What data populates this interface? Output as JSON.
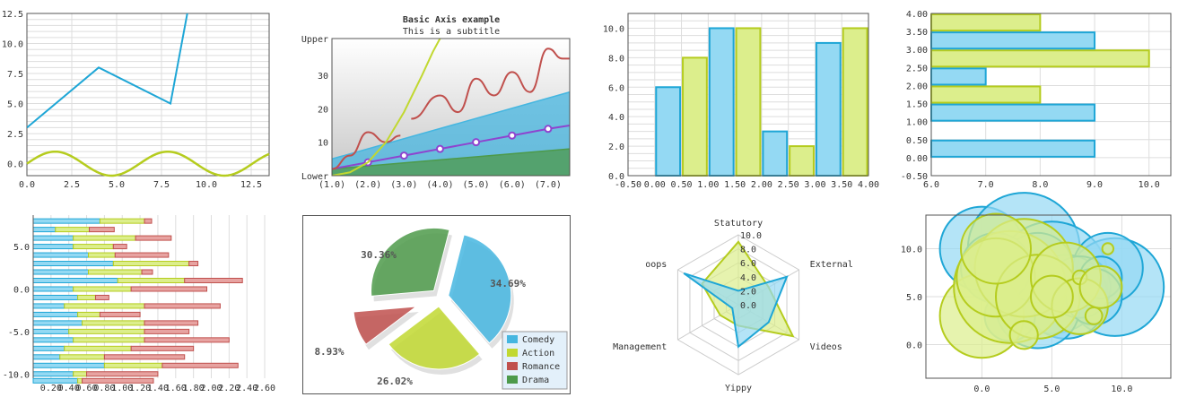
{
  "colors": {
    "blue": "#1ea6d6",
    "blue_fill": "#94d9f3",
    "green": "#b5cc1e",
    "green_fill": "#dcee8c",
    "red": "#c0504d",
    "red_fill": "#e7a3a1",
    "dkgreen": "#4d9a4a",
    "dkgreen_fill": "#8dc58a",
    "purple": "#8e44cf",
    "olive": "#c1d830",
    "sky": "#45b6e0"
  },
  "chart_data": [
    {
      "type": "line",
      "xlim": [
        0,
        13.5
      ],
      "ylim": [
        -1,
        12.5
      ],
      "grid": true,
      "xticks": [
        "0.0",
        "2.5",
        "5.0",
        "7.5",
        "10.0",
        "12.5"
      ],
      "yticks": [
        "0.0",
        "2.5",
        "5.0",
        "7.5",
        "10.0",
        "12.5"
      ],
      "series": [
        {
          "color": "blue",
          "x": [
            0,
            4,
            8,
            9
          ],
          "y": [
            3,
            8,
            5,
            13
          ]
        },
        {
          "color": "green",
          "function": "sin",
          "x_range": [
            0,
            13.5
          ]
        }
      ]
    },
    {
      "type": "line",
      "title": "Basic Axis example",
      "subtitle": "This is a subtitle",
      "xlim": [
        1,
        7.6
      ],
      "ylim": [
        0,
        41
      ],
      "xticks": [
        "(1.0)",
        "(2.0)",
        "(3.0)",
        "(4.0)",
        "(5.0)",
        "(6.0)",
        "(7.0)"
      ],
      "yticks": [
        "10",
        "20",
        "30"
      ],
      "ytick_labels": {
        "top": "Upper",
        "bottom": "Lower"
      },
      "series": [
        {
          "type": "area",
          "color": "sky",
          "x": [
            1,
            7.6
          ],
          "y": [
            5,
            25
          ]
        },
        {
          "type": "area",
          "color": "dkgreen",
          "x": [
            1,
            7.6
          ],
          "y": [
            2,
            8
          ]
        },
        {
          "type": "line",
          "color": "purple",
          "x": [
            1,
            2,
            3,
            4,
            5,
            6,
            7,
            7.6
          ],
          "y": [
            2,
            4,
            6,
            8,
            10,
            12,
            14,
            15
          ],
          "markers": [
            2,
            3,
            4,
            5,
            6,
            7
          ]
        },
        {
          "type": "line",
          "color": "red",
          "segments": [
            [
              [
                1,
                2
              ],
              [
                1.5,
                6
              ],
              [
                2,
                13
              ],
              [
                2.5,
                10
              ],
              [
                2.9,
                12
              ]
            ],
            [
              [
                3.2,
                17
              ],
              [
                4,
                24
              ],
              [
                4.5,
                19
              ],
              [
                5,
                29
              ],
              [
                5.5,
                24
              ],
              [
                6,
                31
              ],
              [
                6.5,
                25
              ],
              [
                7,
                38
              ],
              [
                7.4,
                35
              ],
              [
                7.6,
                35
              ]
            ]
          ]
        },
        {
          "type": "line",
          "color": "olive",
          "x": [
            1,
            1.5,
            2,
            2.5,
            3,
            3.5,
            3.8,
            4.1
          ],
          "y": [
            0,
            1,
            4,
            10,
            19,
            30,
            37,
            43
          ]
        }
      ]
    },
    {
      "type": "bar",
      "xlim": [
        -0.5,
        4.0
      ],
      "ylim": [
        0,
        11
      ],
      "xticks": [
        "-0.50",
        "0.00",
        "0.50",
        "1.00",
        "1.50",
        "2.00",
        "2.50",
        "3.00",
        "3.50",
        "4.00"
      ],
      "yticks": [
        "0.0",
        "2.0",
        "4.0",
        "6.0",
        "8.0",
        "10.0"
      ],
      "bars": [
        {
          "x": 0.0,
          "value": 6,
          "color": "blue"
        },
        {
          "x": 0.5,
          "value": 8,
          "color": "green"
        },
        {
          "x": 1.0,
          "value": 10,
          "color": "blue"
        },
        {
          "x": 1.5,
          "value": 10,
          "color": "green"
        },
        {
          "x": 2.0,
          "value": 3,
          "color": "blue"
        },
        {
          "x": 2.5,
          "value": 2,
          "color": "green"
        },
        {
          "x": 3.0,
          "value": 9,
          "color": "blue"
        },
        {
          "x": 3.5,
          "value": 10,
          "color": "green"
        }
      ]
    },
    {
      "type": "bar",
      "orientation": "horizontal",
      "xlim": [
        6.0,
        10.4
      ],
      "ylim": [
        -0.5,
        4.0
      ],
      "xticks": [
        "6.0",
        "7.0",
        "8.0",
        "9.0",
        "10.0"
      ],
      "yticks": [
        "-0.50",
        "0.00",
        "0.50",
        "1.00",
        "1.50",
        "2.00",
        "2.50",
        "3.00",
        "3.50",
        "4.00"
      ],
      "bars": [
        {
          "y": 0.0,
          "value": 9,
          "color": "blue"
        },
        {
          "y": 1.0,
          "value": 9,
          "color": "blue"
        },
        {
          "y": 1.5,
          "value": 8,
          "color": "green"
        },
        {
          "y": 2.0,
          "value": 7,
          "color": "blue"
        },
        {
          "y": 2.5,
          "value": 10,
          "color": "green"
        },
        {
          "y": 3.0,
          "value": 9,
          "color": "blue"
        },
        {
          "y": 3.5,
          "value": 8,
          "color": "green"
        }
      ]
    },
    {
      "type": "bar",
      "orientation": "horizontal",
      "stacked": true,
      "xlim": [
        0.0,
        2.65
      ],
      "ylim": [
        -10.5,
        8.7
      ],
      "xticks": [
        "0.20",
        "0.40",
        "0.60",
        "0.80",
        "1.00",
        "1.20",
        "1.40",
        "1.60",
        "1.80",
        "2.00",
        "2.20",
        "2.40",
        "2.60"
      ],
      "yticks": [
        "-10.0",
        "-5.0",
        "0.0",
        "5.0"
      ],
      "rows": [
        {
          "y": 8,
          "values": [
            0.75,
            0.5,
            0.08
          ]
        },
        {
          "y": 7,
          "values": [
            0.25,
            0.38,
            0.28
          ]
        },
        {
          "y": 6,
          "values": [
            0.45,
            0.7,
            0.4
          ]
        },
        {
          "y": 5,
          "values": [
            0.45,
            0.45,
            0.15
          ]
        },
        {
          "y": 4,
          "values": [
            0.62,
            0.3,
            0.6
          ]
        },
        {
          "y": 3,
          "values": [
            0.9,
            0.85,
            0.1
          ]
        },
        {
          "y": 2,
          "values": [
            0.62,
            0.6,
            0.12
          ]
        },
        {
          "y": 1,
          "values": [
            0.95,
            0.75,
            0.65
          ]
        },
        {
          "y": 0,
          "values": [
            0.45,
            0.65,
            0.85
          ]
        },
        {
          "y": -1,
          "values": [
            0.5,
            0.2,
            0.15
          ]
        },
        {
          "y": -2,
          "values": [
            0.35,
            0.9,
            0.85
          ]
        },
        {
          "y": -3,
          "values": [
            0.5,
            0.25,
            0.45
          ]
        },
        {
          "y": -4,
          "values": [
            0.55,
            0.7,
            0.6
          ]
        },
        {
          "y": -5,
          "values": [
            0.4,
            0.85,
            0.5
          ]
        },
        {
          "y": -6,
          "values": [
            0.45,
            0.8,
            0.95
          ]
        },
        {
          "y": -7,
          "values": [
            0.35,
            0.75,
            0.7
          ]
        },
        {
          "y": -8,
          "values": [
            0.3,
            0.5,
            0.9
          ]
        },
        {
          "y": -9,
          "values": [
            0.8,
            0.65,
            0.85
          ]
        },
        {
          "y": -10,
          "values": [
            0.45,
            0.15,
            0.8
          ]
        },
        {
          "y": -10.8,
          "values": [
            0.5,
            0.05,
            0.8
          ]
        }
      ]
    },
    {
      "type": "pie",
      "legend": "bottom-right",
      "slices": [
        {
          "label": "Comedy",
          "value": 34.69,
          "text": "34.69%",
          "color": "sky"
        },
        {
          "label": "Action",
          "value": 26.02,
          "text": "26.02%",
          "color": "olive"
        },
        {
          "label": "Romance",
          "value": 8.93,
          "text": "8.93%",
          "color": "red"
        },
        {
          "label": "Drama",
          "value": 30.36,
          "text": "30.36%",
          "color": "dkgreen"
        }
      ]
    },
    {
      "type": "radar",
      "rlim": [
        0,
        10
      ],
      "rticks": [
        "0.0",
        "2.0",
        "4.0",
        "6.0",
        "8.0",
        "10.0"
      ],
      "axes": [
        "Statutory",
        "External",
        "Videos",
        "Yippy",
        "Management",
        "oops"
      ],
      "series": [
        {
          "color": "green",
          "values": [
            9,
            5,
            9,
            3,
            3,
            6
          ]
        },
        {
          "color": "blue",
          "values": [
            2,
            8,
            5,
            6,
            1,
            9
          ]
        }
      ]
    },
    {
      "type": "scatter",
      "bubble": true,
      "xlim": [
        -4,
        13.5
      ],
      "ylim": [
        -3.5,
        13.5
      ],
      "xticks": [
        "0.0",
        "5.0",
        "10.0"
      ],
      "yticks": [
        "0.0",
        "5.0",
        "10.0"
      ],
      "series": [
        {
          "color": "blue",
          "points": [
            [
              0,
              10,
              3
            ],
            [
              3,
              10,
              4
            ],
            [
              5,
              7,
              4
            ],
            [
              9.5,
              6,
              3.5
            ],
            [
              9,
              8,
              2.5
            ],
            [
              6,
              5,
              3
            ],
            [
              4,
              4,
              3
            ],
            [
              2,
              3,
              1.8
            ],
            [
              7,
              6,
              2.2
            ],
            [
              4,
              8,
              2.5
            ],
            [
              1,
              8,
              2.5
            ],
            [
              8.5,
              7,
              1.5
            ],
            [
              8,
              5,
              2
            ]
          ]
        },
        {
          "color": "green",
          "points": [
            [
              0,
              3,
              3
            ],
            [
              2,
              6,
              4
            ],
            [
              3,
              8,
              3.5
            ],
            [
              1,
              7,
              2.8
            ],
            [
              4,
              5,
              3
            ],
            [
              3,
              1,
              1
            ],
            [
              6,
              7,
              2.5
            ],
            [
              7,
              4,
              2
            ],
            [
              7,
              7,
              0.5
            ],
            [
              8,
              3,
              0.6
            ],
            [
              8.5,
              6,
              1.5
            ],
            [
              9,
              10,
              0.4
            ],
            [
              5,
              5,
              1.5
            ],
            [
              1,
              10,
              2.5
            ]
          ]
        }
      ]
    }
  ]
}
